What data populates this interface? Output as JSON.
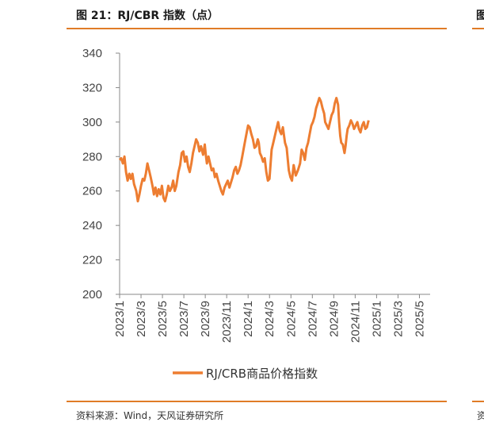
{
  "figure": {
    "title": "图 21：RJ/CBR 指数（点）",
    "source": "资料来源：Wind，天风证券研究所",
    "right_edge_title": "图",
    "right_edge_source": "资"
  },
  "colors": {
    "series": "#ed7d31",
    "rule": "#e07c27",
    "axis": "#888888"
  },
  "chart_data": {
    "type": "line",
    "title": "",
    "xlabel": "",
    "ylabel": "",
    "ylim": [
      200,
      340
    ],
    "yticks": [
      200,
      220,
      240,
      260,
      280,
      300,
      320,
      340
    ],
    "xlim": [
      0,
      29
    ],
    "xticks": [
      {
        "label": "2023/1",
        "m": 0
      },
      {
        "label": "2023/3",
        "m": 2
      },
      {
        "label": "2023/5",
        "m": 4
      },
      {
        "label": "2023/7",
        "m": 6
      },
      {
        "label": "2023/9",
        "m": 8
      },
      {
        "label": "2023/11",
        "m": 10
      },
      {
        "label": "2024/1",
        "m": 12
      },
      {
        "label": "2024/3",
        "m": 14
      },
      {
        "label": "2024/5",
        "m": 16
      },
      {
        "label": "2024/7",
        "m": 18
      },
      {
        "label": "2024/9",
        "m": 20
      },
      {
        "label": "2024/11",
        "m": 22
      },
      {
        "label": "2025/1",
        "m": 24
      },
      {
        "label": "2025/3",
        "m": 26
      },
      {
        "label": "2025/5",
        "m": 28
      }
    ],
    "legend": "RJ/CRB商品价格指数",
    "legend_position": "bottom",
    "series": [
      {
        "name": "RJ/CRB商品价格指数",
        "points": [
          [
            0.0,
            278
          ],
          [
            0.15,
            279
          ],
          [
            0.3,
            276
          ],
          [
            0.45,
            280
          ],
          [
            0.6,
            271
          ],
          [
            0.75,
            266
          ],
          [
            0.9,
            270
          ],
          [
            1.05,
            267
          ],
          [
            1.2,
            270
          ],
          [
            1.35,
            264
          ],
          [
            1.55,
            260
          ],
          [
            1.7,
            254
          ],
          [
            1.85,
            258
          ],
          [
            2.0,
            263
          ],
          [
            2.15,
            267
          ],
          [
            2.3,
            266
          ],
          [
            2.45,
            270
          ],
          [
            2.6,
            276
          ],
          [
            2.75,
            272
          ],
          [
            2.9,
            268
          ],
          [
            3.0,
            265
          ],
          [
            3.1,
            262
          ],
          [
            3.2,
            258
          ],
          [
            3.35,
            262
          ],
          [
            3.5,
            257
          ],
          [
            3.65,
            261
          ],
          [
            3.8,
            258
          ],
          [
            3.95,
            263
          ],
          [
            4.1,
            256
          ],
          [
            4.25,
            254
          ],
          [
            4.4,
            258
          ],
          [
            4.55,
            263
          ],
          [
            4.7,
            260
          ],
          [
            4.85,
            262
          ],
          [
            5.0,
            266
          ],
          [
            5.15,
            260
          ],
          [
            5.3,
            263
          ],
          [
            5.5,
            271
          ],
          [
            5.65,
            275
          ],
          [
            5.8,
            282
          ],
          [
            5.95,
            283
          ],
          [
            6.1,
            277
          ],
          [
            6.25,
            280
          ],
          [
            6.4,
            274
          ],
          [
            6.55,
            271
          ],
          [
            6.7,
            276
          ],
          [
            6.85,
            282
          ],
          [
            7.0,
            286
          ],
          [
            7.15,
            290
          ],
          [
            7.3,
            288
          ],
          [
            7.45,
            283
          ],
          [
            7.6,
            286
          ],
          [
            7.8,
            281
          ],
          [
            7.95,
            287
          ],
          [
            8.05,
            281
          ],
          [
            8.15,
            276
          ],
          [
            8.3,
            280
          ],
          [
            8.45,
            276
          ],
          [
            8.6,
            272
          ],
          [
            8.75,
            273
          ],
          [
            8.9,
            268
          ],
          [
            9.05,
            270
          ],
          [
            9.2,
            266
          ],
          [
            9.35,
            263
          ],
          [
            9.5,
            260
          ],
          [
            9.65,
            258
          ],
          [
            9.8,
            262
          ],
          [
            9.95,
            264
          ],
          [
            10.1,
            266
          ],
          [
            10.25,
            262
          ],
          [
            10.4,
            265
          ],
          [
            10.55,
            268
          ],
          [
            10.7,
            272
          ],
          [
            10.85,
            274
          ],
          [
            11.0,
            270
          ],
          [
            11.15,
            272
          ],
          [
            11.3,
            275
          ],
          [
            11.45,
            280
          ],
          [
            11.6,
            285
          ],
          [
            11.75,
            290
          ],
          [
            11.9,
            295
          ],
          [
            12.0,
            298
          ],
          [
            12.15,
            297
          ],
          [
            12.3,
            293
          ],
          [
            12.45,
            290
          ],
          [
            12.6,
            285
          ],
          [
            12.75,
            286
          ],
          [
            12.9,
            290
          ],
          [
            13.0,
            288
          ],
          [
            13.1,
            282
          ],
          [
            13.25,
            280
          ],
          [
            13.4,
            277
          ],
          [
            13.55,
            279
          ],
          [
            13.7,
            271
          ],
          [
            13.85,
            266
          ],
          [
            14.0,
            267
          ],
          [
            14.2,
            284
          ],
          [
            14.35,
            288
          ],
          [
            14.5,
            292
          ],
          [
            14.65,
            296
          ],
          [
            14.8,
            300
          ],
          [
            14.95,
            295
          ],
          [
            15.1,
            293
          ],
          [
            15.25,
            297
          ],
          [
            15.45,
            288
          ],
          [
            15.6,
            285
          ],
          [
            15.8,
            272
          ],
          [
            15.95,
            268
          ],
          [
            16.1,
            266
          ],
          [
            16.25,
            275
          ],
          [
            16.45,
            269
          ],
          [
            16.65,
            272
          ],
          [
            16.85,
            276
          ],
          [
            17.0,
            284
          ],
          [
            17.15,
            282
          ],
          [
            17.3,
            278
          ],
          [
            17.45,
            285
          ],
          [
            17.6,
            288
          ],
          [
            17.75,
            293
          ],
          [
            17.9,
            298
          ],
          [
            18.05,
            300
          ],
          [
            18.2,
            303
          ],
          [
            18.35,
            308
          ],
          [
            18.5,
            311
          ],
          [
            18.65,
            314
          ],
          [
            18.8,
            312
          ],
          [
            18.95,
            308
          ],
          [
            19.1,
            305
          ],
          [
            19.2,
            300
          ],
          [
            19.35,
            298
          ],
          [
            19.5,
            296
          ],
          [
            19.65,
            300
          ],
          [
            19.8,
            304
          ],
          [
            19.95,
            306
          ],
          [
            20.1,
            311
          ],
          [
            20.25,
            314
          ],
          [
            20.4,
            310
          ],
          [
            20.5,
            300
          ],
          [
            20.6,
            292
          ],
          [
            20.7,
            288
          ],
          [
            20.85,
            287
          ],
          [
            21.0,
            282
          ],
          [
            21.1,
            286
          ],
          [
            21.2,
            292
          ],
          [
            21.3,
            296
          ],
          [
            21.45,
            298
          ],
          [
            21.6,
            301
          ],
          [
            21.75,
            299
          ],
          [
            21.9,
            296
          ],
          [
            22.05,
            298
          ],
          [
            22.2,
            300
          ],
          [
            22.35,
            296
          ],
          [
            22.5,
            294
          ],
          [
            22.65,
            298
          ],
          [
            22.8,
            300
          ],
          [
            22.95,
            296
          ],
          [
            23.1,
            297
          ],
          [
            23.25,
            301
          ]
        ]
      }
    ]
  }
}
